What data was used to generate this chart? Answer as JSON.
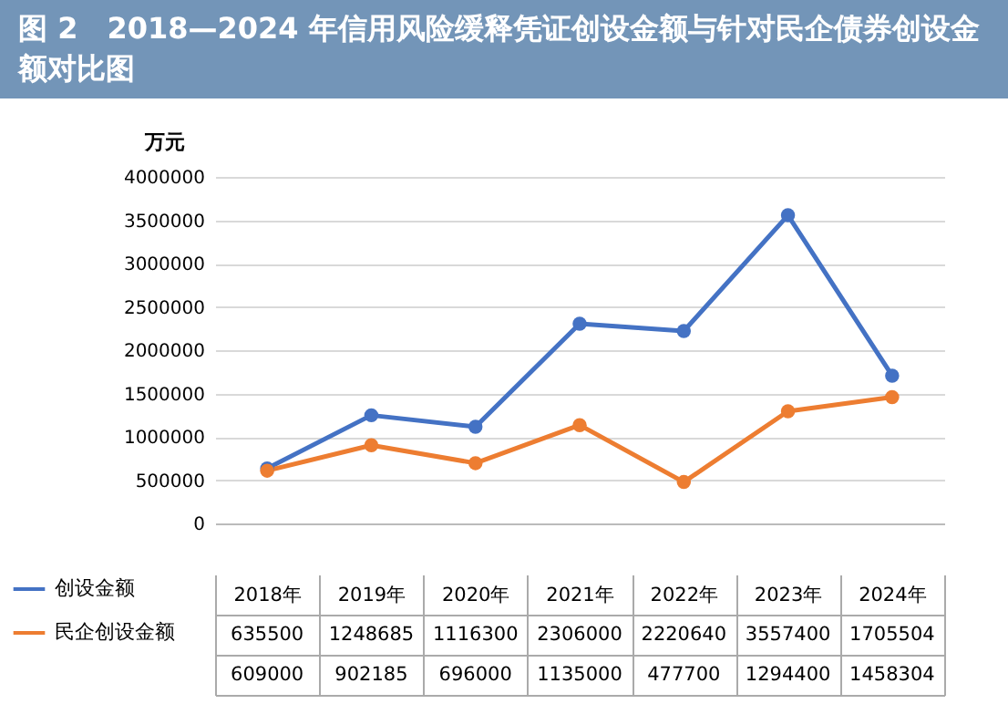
{
  "chart_data": {
    "type": "line",
    "title": "图 2　2018—2024 年信用风险缓释凭证创设金额与针对民企债券创设金额对比图",
    "ylabel": "万元",
    "categories": [
      "2018年",
      "2019年",
      "2020年",
      "2021年",
      "2022年",
      "2023年",
      "2024年"
    ],
    "series": [
      {
        "name": "创设金额",
        "color": "#4472c4",
        "values": [
          635500,
          1248685,
          1116300,
          2306000,
          2220640,
          3557400,
          1705504
        ],
        "value_labels": [
          "635500",
          "1248685",
          "1116300",
          "2306000",
          "2220640",
          "3557400",
          "1705504"
        ]
      },
      {
        "name": "民企创设金额",
        "color": "#ed7d31",
        "values": [
          609000,
          902185,
          696000,
          1135000,
          477700,
          1294400,
          1458304
        ],
        "value_labels": [
          "609000",
          "902185",
          "696000",
          "1135000",
          "477700",
          "1294400",
          "1458304"
        ]
      }
    ],
    "ylim": [
      0,
      4000000
    ],
    "yticks": [
      0,
      500000,
      1000000,
      1500000,
      2000000,
      2500000,
      3000000,
      3500000,
      4000000
    ],
    "grid": "y",
    "marker": "circle",
    "line_style": "solid",
    "legend": "bottom left"
  }
}
